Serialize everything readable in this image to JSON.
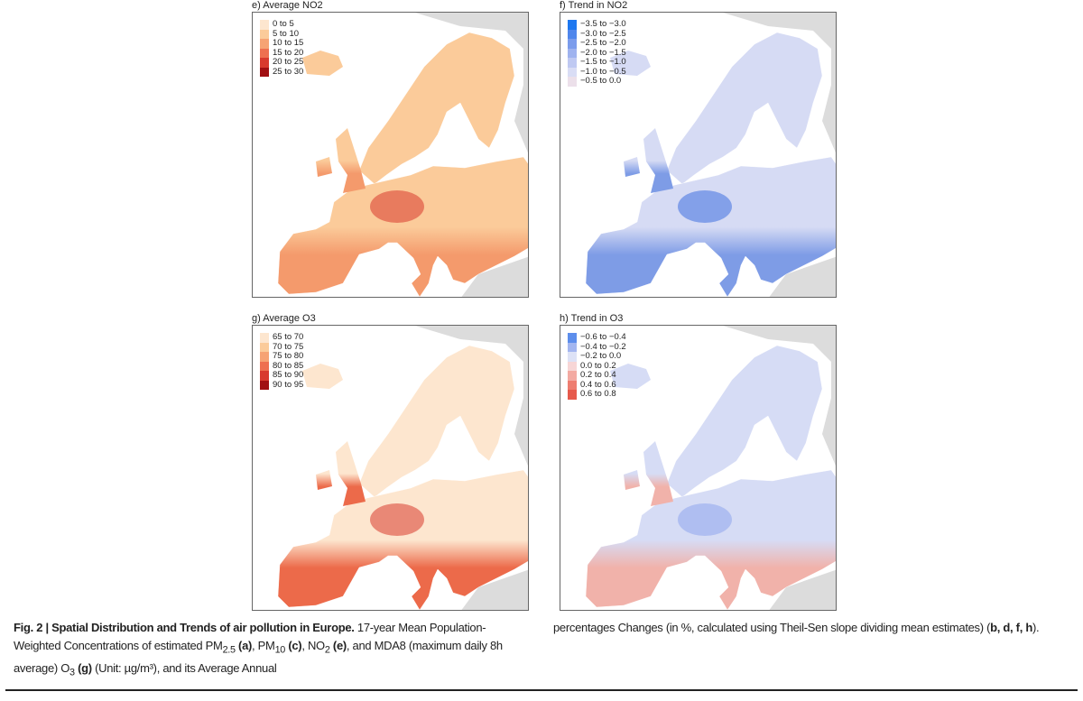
{
  "panels": [
    {
      "title": "e) Average NO2",
      "legend": [
        {
          "label": "0 to 5",
          "color": "#fde6cf"
        },
        {
          "label": "5 to 10",
          "color": "#fbcb9a"
        },
        {
          "label": "10 to 15",
          "color": "#f6a374"
        },
        {
          "label": "15 to 20",
          "color": "#ee7050"
        },
        {
          "label": "20 to 25",
          "color": "#d83a2e"
        },
        {
          "label": "25 to 30",
          "color": "#a10f12"
        }
      ],
      "map_colors": {
        "north": "#fbcb9a",
        "south": "#f49a6c",
        "hot": "#d83a2e"
      }
    },
    {
      "title": "f) Trend in NO2",
      "legend": [
        {
          "label": "−3.5 to −3.0",
          "color": "#1e78f0"
        },
        {
          "label": "−3.0 to −2.5",
          "color": "#4f86ec"
        },
        {
          "label": "−2.5 to −2.0",
          "color": "#7b9cec"
        },
        {
          "label": "−2.0 to −1.5",
          "color": "#9fb3ef"
        },
        {
          "label": "−1.5 to −1.0",
          "color": "#bfc9f2"
        },
        {
          "label": "−1.0 to −0.5",
          "color": "#d9ddf5"
        },
        {
          "label": "−0.5 to 0.0",
          "color": "#ece0ea"
        }
      ],
      "map_colors": {
        "north": "#d6dbf4",
        "south": "#7e9ce6",
        "hot": "#3f6fe0"
      }
    },
    {
      "title": "g) Average O3",
      "legend": [
        {
          "label": "65 to 70",
          "color": "#fde6cf"
        },
        {
          "label": "70 to 75",
          "color": "#fbcb9a"
        },
        {
          "label": "75 to 80",
          "color": "#f6a374"
        },
        {
          "label": "80 to 85",
          "color": "#ee7050"
        },
        {
          "label": "85 to 90",
          "color": "#d83a2e"
        },
        {
          "label": "90 to 95",
          "color": "#a10f12"
        }
      ],
      "map_colors": {
        "north": "#fde6cf",
        "south": "#ec6a4a",
        "hot": "#d83a2e"
      }
    },
    {
      "title": "h) Trend in O3",
      "legend": [
        {
          "label": "−0.6 to −0.4",
          "color": "#5d8eec"
        },
        {
          "label": "−0.4 to −0.2",
          "color": "#a3b6f0"
        },
        {
          "label": "−0.2 to 0.0",
          "color": "#dde2f6"
        },
        {
          "label": "0.0 to 0.2",
          "color": "#f7d6d6"
        },
        {
          "label": "0.2 to 0.4",
          "color": "#f3aaa2"
        },
        {
          "label": "0.4 to 0.6",
          "color": "#ee7d70"
        },
        {
          "label": "0.6 to 0.8",
          "color": "#e65a4c"
        }
      ],
      "map_colors": {
        "north": "#d6dcf5",
        "south": "#f1b2aa",
        "hot": "#8fa6ec"
      }
    }
  ],
  "caption": {
    "fig_label": "Fig. 2 | Spatial Distribution and Trends of air pollution in Europe.",
    "col1": " 17-year Mean Population-Weighted Concentrations of estimated PM",
    "pm25_sub": "2.5",
    "a": "(a)",
    "pm10": ", PM",
    "pm10_sub": "10",
    "c": "(c)",
    "no2": ", NO",
    "no2_sub": "2",
    "e": "(e)",
    "mda": ", and MDA8 (maximum daily 8h average) O",
    "o3_sub": "3",
    "g": "(g)",
    "unit": " (Unit: µg/m³), and its Average Annual",
    "col2": "percentages Changes (in %, calculated using Theil-Sen slope dividing mean estimates) (",
    "bdfh": "b, d, f, h",
    "end": ")."
  }
}
